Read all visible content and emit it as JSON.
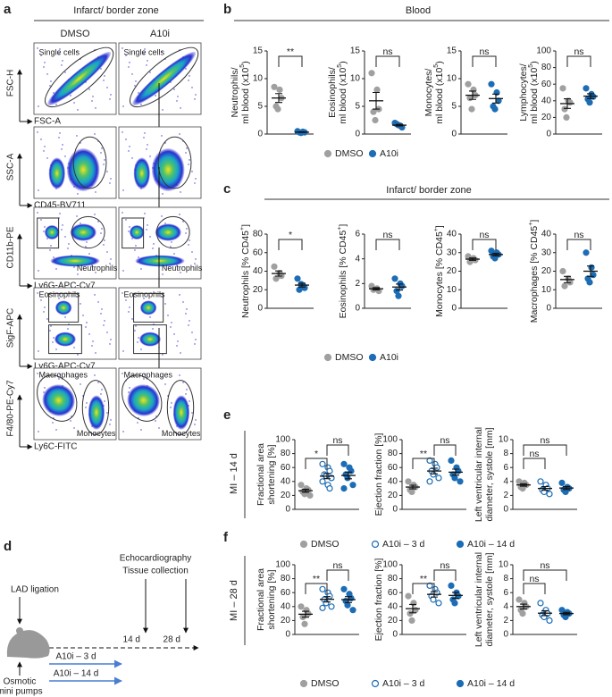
{
  "panel_letters": [
    "a",
    "b",
    "c",
    "d",
    "e",
    "f"
  ],
  "flow": {
    "title": "Infarct/ border zone",
    "columns": [
      "DMSO",
      "A10i"
    ],
    "rows": [
      {
        "y": "FSC-H",
        "x": "FSC-A",
        "gates": [
          "Single cells"
        ]
      },
      {
        "y": "SSC-A",
        "x": "CD45-BV711"
      },
      {
        "y": "CD11b-PE",
        "x": "Ly6G-APC-Cy7",
        "gates": [
          "Neutrophils"
        ]
      },
      {
        "y": "SigF-APC",
        "x": "Ly6G-APC-Cy7",
        "gates": [
          "Eosinophils"
        ]
      },
      {
        "y": "F4/80-PE-Cy7",
        "x": "Ly6C-FITC",
        "gates": [
          "Macrophages",
          "Monocytes"
        ]
      }
    ]
  },
  "headers": {
    "b": "Blood",
    "c": "Infarct/ border zone",
    "e": "MI – 14 d",
    "f": "MI – 28 d"
  },
  "timeline": {
    "lad": "LAD ligation",
    "readout": [
      "Echocardiography",
      "Tissue collection"
    ],
    "days": [
      "14 d",
      "28 d"
    ],
    "treatments": [
      "A10i – 3 d",
      "A10i – 14 d"
    ],
    "pumps": [
      "Osmotic",
      "mini pumps"
    ]
  },
  "chart_data": [
    {
      "type": "dot",
      "ylabel": [
        [
          "Neutrophils/"
        ],
        [
          "ml blood (x10",
          {
            "sup": "5"
          },
          ")"
        ]
      ],
      "ylim": [
        0,
        15
      ],
      "yticks": [
        0,
        5,
        10,
        15
      ],
      "series": [
        {
          "name": "DMSO",
          "color": "#a0a0a0",
          "marker": "filled",
          "values": [
            8.5,
            8.0,
            6.5,
            5.0,
            4.5
          ],
          "mean": 6.5,
          "sem": 0.8
        },
        {
          "name": "A10i",
          "color": "#1c6db5",
          "marker": "filled",
          "values": [
            0.5,
            0.4,
            0.3,
            0.3,
            0.2
          ],
          "mean": 0.34,
          "sem": 0.05
        }
      ],
      "brackets": [
        {
          "label": "**",
          "groups": [
            "DMSO",
            "A10i"
          ]
        }
      ]
    },
    {
      "type": "dot",
      "ylabel": [
        [
          "Eosinophils/"
        ],
        [
          "ml blood (x10",
          {
            "sup": "5"
          },
          ")"
        ]
      ],
      "ylim": [
        0,
        15
      ],
      "yticks": [
        0,
        5,
        10,
        15
      ],
      "series": [
        {
          "name": "DMSO",
          "color": "#a0a0a0",
          "marker": "filled",
          "values": [
            11,
            8,
            4.5,
            4,
            2.5
          ],
          "mean": 6.0,
          "sem": 1.5
        },
        {
          "name": "A10i",
          "color": "#1c6db5",
          "marker": "filled",
          "values": [
            2,
            1.5,
            1.2,
            1.8,
            1.6
          ],
          "mean": 1.6,
          "sem": 0.15
        }
      ],
      "brackets": [
        {
          "label": "ns",
          "groups": [
            "DMSO",
            "A10i"
          ]
        }
      ]
    },
    {
      "type": "dot",
      "ylabel": [
        [
          "Monocytes/"
        ],
        [
          "ml blood (x10",
          {
            "sup": "5"
          },
          ")"
        ]
      ],
      "ylim": [
        0,
        15
      ],
      "yticks": [
        0,
        5,
        10,
        15
      ],
      "series": [
        {
          "name": "DMSO",
          "color": "#a0a0a0",
          "marker": "filled",
          "values": [
            9,
            8,
            7,
            6.5,
            4.5
          ],
          "mean": 7.0,
          "sem": 0.75
        },
        {
          "name": "A10i",
          "color": "#1c6db5",
          "marker": "filled",
          "values": [
            9,
            7.5,
            6,
            5,
            4.5
          ],
          "mean": 6.4,
          "sem": 0.8
        }
      ],
      "brackets": [
        {
          "label": "ns",
          "groups": [
            "DMSO",
            "A10i"
          ]
        }
      ]
    },
    {
      "type": "dot",
      "ylabel": [
        [
          "Lymphocytes/"
        ],
        [
          "ml blood (x10",
          {
            "sup": "5"
          },
          ")"
        ]
      ],
      "ylim": [
        0,
        100
      ],
      "yticks": [
        0,
        20,
        40,
        60,
        80,
        100
      ],
      "series": [
        {
          "name": "DMSO",
          "color": "#a0a0a0",
          "marker": "filled",
          "values": [
            55,
            40,
            38,
            30,
            20
          ],
          "mean": 36.6,
          "sem": 5.8
        },
        {
          "name": "A10i",
          "color": "#1c6db5",
          "marker": "filled",
          "values": [
            55,
            48,
            45,
            42,
            38
          ],
          "mean": 45.6,
          "sem": 2.9
        }
      ],
      "brackets": [
        {
          "label": "ns",
          "groups": [
            "DMSO",
            "A10i"
          ]
        }
      ]
    },
    {
      "type": "dot",
      "ylabel": [
        [
          "Neutrophils [% CD45",
          {
            "sup": "+"
          },
          "]"
        ]
      ],
      "ylim": [
        0,
        80
      ],
      "yticks": [
        0,
        20,
        40,
        60,
        80
      ],
      "series": [
        {
          "name": "DMSO",
          "color": "#a0a0a0",
          "marker": "filled",
          "values": [
            45,
            38,
            35,
            32
          ],
          "mean": 37.5,
          "sem": 2.8
        },
        {
          "name": "A10i",
          "color": "#1c6db5",
          "marker": "filled",
          "values": [
            32,
            25,
            22,
            20,
            26
          ],
          "mean": 25,
          "sem": 2
        }
      ],
      "brackets": [
        {
          "label": "*",
          "groups": [
            "DMSO",
            "A10i"
          ]
        }
      ]
    },
    {
      "type": "dot",
      "ylabel": [
        [
          "Eosinophils [% CD45",
          {
            "sup": "+"
          },
          "]"
        ]
      ],
      "ylim": [
        0,
        6
      ],
      "yticks": [
        0,
        2,
        4,
        6
      ],
      "series": [
        {
          "name": "DMSO",
          "color": "#a0a0a0",
          "marker": "filled",
          "values": [
            1.8,
            1.6,
            1.4,
            1.5
          ],
          "mean": 1.58,
          "sem": 0.09
        },
        {
          "name": "A10i",
          "color": "#1c6db5",
          "marker": "filled",
          "values": [
            2.4,
            2.0,
            1.8,
            1.4,
            1.0
          ],
          "mean": 1.72,
          "sem": 0.24
        }
      ],
      "brackets": [
        {
          "label": "ns",
          "groups": [
            "DMSO",
            "A10i"
          ]
        }
      ]
    },
    {
      "type": "dot",
      "ylabel": [
        [
          "Monocytes [% CD45",
          {
            "sup": "+"
          },
          "]"
        ]
      ],
      "ylim": [
        0,
        40
      ],
      "yticks": [
        0,
        10,
        20,
        30,
        40
      ],
      "series": [
        {
          "name": "DMSO",
          "color": "#a0a0a0",
          "marker": "filled",
          "values": [
            28,
            27,
            26,
            25
          ],
          "mean": 26.5,
          "sem": 0.65
        },
        {
          "name": "A10i",
          "color": "#1c6db5",
          "marker": "filled",
          "values": [
            31,
            30,
            29,
            28,
            27
          ],
          "mean": 29,
          "sem": 0.7
        }
      ],
      "brackets": [
        {
          "label": "ns",
          "groups": [
            "DMSO",
            "A10i"
          ]
        }
      ]
    },
    {
      "type": "dot",
      "ylabel": [
        [
          "Macrophages [% CD45",
          {
            "sup": "+"
          },
          "]"
        ]
      ],
      "ylim": [
        0,
        40
      ],
      "yticks": [
        0,
        10,
        20,
        30,
        40
      ],
      "series": [
        {
          "name": "DMSO",
          "color": "#a0a0a0",
          "marker": "filled",
          "values": [
            20,
            16,
            14,
            12
          ],
          "mean": 15.5,
          "sem": 1.7
        },
        {
          "name": "A10i",
          "color": "#1c6db5",
          "marker": "filled",
          "values": [
            30,
            22,
            18,
            16,
            14
          ],
          "mean": 20,
          "sem": 2.8
        }
      ],
      "brackets": [
        {
          "label": "ns",
          "groups": [
            "DMSO",
            "A10i"
          ]
        }
      ]
    },
    {
      "type": "dot",
      "ylabel": [
        [
          "Fractional area"
        ],
        [
          "shortening [%]"
        ]
      ],
      "ylim": [
        0,
        100
      ],
      "yticks": [
        0,
        20,
        40,
        60,
        80,
        100
      ],
      "series": [
        {
          "name": "DMSO",
          "color": "#a0a0a0",
          "marker": "filled",
          "values": [
            35,
            30,
            28,
            25,
            22,
            20
          ],
          "mean": 26.7,
          "sem": 2.2
        },
        {
          "name": "A10i – 3 d",
          "color": "#1c6db5",
          "marker": "open",
          "values": [
            65,
            60,
            55,
            50,
            48,
            45,
            40,
            35,
            30
          ],
          "mean": 47.6,
          "sem": 3.7
        },
        {
          "name": "A10i – 14 d",
          "color": "#1c6db5",
          "marker": "filled",
          "values": [
            65,
            60,
            55,
            50,
            45,
            35,
            30
          ],
          "mean": 48.6,
          "sem": 4.8
        }
      ],
      "brackets": [
        {
          "label": "*",
          "groups": [
            "DMSO",
            "A10i – 3 d"
          ]
        },
        {
          "label": "ns",
          "groups": [
            "A10i – 3 d",
            "A10i – 14 d"
          ]
        }
      ]
    },
    {
      "type": "dot",
      "ylabel": [
        [
          "Ejection fraction [%]"
        ]
      ],
      "ylim": [
        0,
        100
      ],
      "yticks": [
        0,
        20,
        40,
        60,
        80,
        100
      ],
      "series": [
        {
          "name": "DMSO",
          "color": "#a0a0a0",
          "marker": "filled",
          "values": [
            40,
            35,
            32,
            28,
            25
          ],
          "mean": 32,
          "sem": 2.6
        },
        {
          "name": "A10i – 3 d",
          "color": "#1c6db5",
          "marker": "open",
          "values": [
            70,
            65,
            60,
            55,
            50,
            45,
            40
          ],
          "mean": 55,
          "sem": 4.1
        },
        {
          "name": "A10i – 14 d",
          "color": "#1c6db5",
          "marker": "filled",
          "values": [
            70,
            60,
            55,
            50,
            45,
            40
          ],
          "mean": 53.3,
          "sem": 4.4
        }
      ],
      "brackets": [
        {
          "label": "**",
          "groups": [
            "DMSO",
            "A10i – 3 d"
          ]
        },
        {
          "label": "ns",
          "groups": [
            "A10i – 3 d",
            "A10i – 14 d"
          ]
        }
      ]
    },
    {
      "type": "dot",
      "ylabel": [
        [
          "Left ventricular internal"
        ],
        [
          "diameter, systole [mm]"
        ]
      ],
      "ylim": [
        0,
        10
      ],
      "yticks": [
        0,
        2,
        4,
        6,
        8,
        10
      ],
      "series": [
        {
          "name": "DMSO",
          "color": "#a0a0a0",
          "marker": "filled",
          "values": [
            4,
            3.8,
            3.5,
            3.2,
            3
          ],
          "mean": 3.5,
          "sem": 0.18
        },
        {
          "name": "A10i – 3 d",
          "color": "#1c6db5",
          "marker": "open",
          "values": [
            4,
            3.5,
            3,
            2.8,
            2.5,
            2.2
          ],
          "mean": 3.0,
          "sem": 0.27
        },
        {
          "name": "A10i – 14 d",
          "color": "#1c6db5",
          "marker": "filled",
          "values": [
            3.8,
            3.2,
            3,
            2.8,
            2.5
          ],
          "mean": 3.06,
          "sem": 0.22
        }
      ],
      "brackets": [
        {
          "label": "ns",
          "groups": [
            "DMSO",
            "A10i – 3 d"
          ]
        },
        {
          "label": "ns",
          "groups": [
            "DMSO",
            "A10i – 14 d"
          ]
        }
      ]
    },
    {
      "type": "dot",
      "ylabel": [
        [
          "Fractional area"
        ],
        [
          "shortening [%]"
        ]
      ],
      "ylim": [
        0,
        100
      ],
      "yticks": [
        0,
        20,
        40,
        60,
        80,
        100
      ],
      "series": [
        {
          "name": "DMSO",
          "color": "#a0a0a0",
          "marker": "filled",
          "values": [
            40,
            35,
            30,
            25,
            15
          ],
          "mean": 29,
          "sem": 4.3
        },
        {
          "name": "A10i – 3 d",
          "color": "#1c6db5",
          "marker": "open",
          "values": [
            65,
            60,
            55,
            50,
            45,
            40,
            38
          ],
          "mean": 50.4,
          "sem": 3.8
        },
        {
          "name": "A10i – 14 d",
          "color": "#1c6db5",
          "marker": "filled",
          "values": [
            65,
            58,
            52,
            48,
            42,
            35
          ],
          "mean": 50,
          "sem": 4.3
        }
      ],
      "brackets": [
        {
          "label": "**",
          "groups": [
            "DMSO",
            "A10i – 3 d"
          ]
        },
        {
          "label": "ns",
          "groups": [
            "A10i – 3 d",
            "A10i – 14 d"
          ]
        }
      ]
    },
    {
      "type": "dot",
      "ylabel": [
        [
          "Ejection fraction [%]"
        ]
      ],
      "ylim": [
        0,
        100
      ],
      "yticks": [
        0,
        20,
        40,
        60,
        80,
        100
      ],
      "series": [
        {
          "name": "DMSO",
          "color": "#a0a0a0",
          "marker": "filled",
          "values": [
            55,
            45,
            35,
            30,
            20
          ],
          "mean": 37,
          "sem": 6
        },
        {
          "name": "A10i – 3 d",
          "color": "#1c6db5",
          "marker": "open",
          "values": [
            70,
            65,
            60,
            55,
            50,
            45
          ],
          "mean": 57.5,
          "sem": 3.8
        },
        {
          "name": "A10i – 14 d",
          "color": "#1c6db5",
          "marker": "filled",
          "values": [
            70,
            60,
            55,
            50,
            45
          ],
          "mean": 56,
          "sem": 4.3
        }
      ],
      "brackets": [
        {
          "label": "**",
          "groups": [
            "DMSO",
            "A10i – 3 d"
          ]
        },
        {
          "label": "ns",
          "groups": [
            "A10i – 3 d",
            "A10i – 14 d"
          ]
        }
      ]
    },
    {
      "type": "dot",
      "ylabel": [
        [
          "Left ventricular internal"
        ],
        [
          "diameter, systole [mm]"
        ]
      ],
      "ylim": [
        0,
        10
      ],
      "yticks": [
        0,
        2,
        4,
        6,
        8,
        10
      ],
      "series": [
        {
          "name": "DMSO",
          "color": "#a0a0a0",
          "marker": "filled",
          "values": [
            5,
            4.5,
            4,
            3.5,
            3
          ],
          "mean": 4,
          "sem": 0.35
        },
        {
          "name": "A10i – 3 d",
          "color": "#1c6db5",
          "marker": "open",
          "values": [
            4.5,
            3.5,
            3,
            2.8,
            2.5,
            2
          ],
          "mean": 3.05,
          "sem": 0.35
        },
        {
          "name": "A10i – 14 d",
          "color": "#1c6db5",
          "marker": "filled",
          "values": [
            3.5,
            3.2,
            3,
            2.8,
            2.5
          ],
          "mean": 3,
          "sem": 0.17
        }
      ],
      "brackets": [
        {
          "label": "ns",
          "groups": [
            "DMSO",
            "A10i – 3 d"
          ]
        },
        {
          "label": "ns",
          "groups": [
            "DMSO",
            "A10i – 14 d"
          ]
        }
      ]
    }
  ]
}
